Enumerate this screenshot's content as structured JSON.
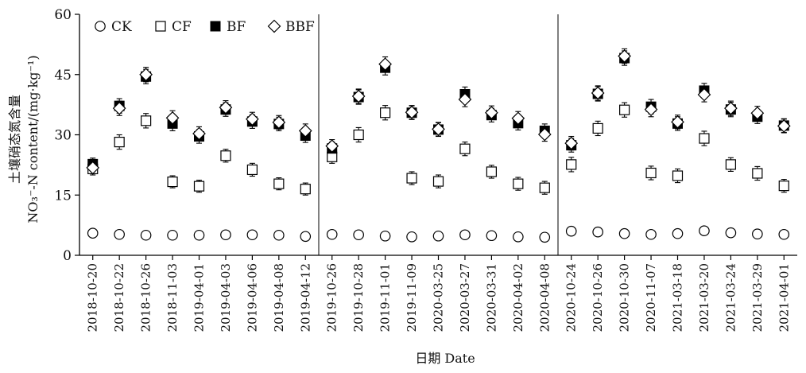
{
  "chart_data": {
    "type": "scatter",
    "ylabel_cn": "土壤硝态氮含量",
    "ylabel_en": "NO₃⁻-N content/(mg·kg⁻¹)",
    "xlabel": "日期 Date",
    "ylim": [
      0,
      60
    ],
    "yticks": [
      "0",
      "15",
      "30",
      "45",
      "60"
    ],
    "ytick_values": [
      0,
      15,
      30,
      45,
      60
    ],
    "categories": [
      "2018-10-20",
      "2018-10-22",
      "2018-10-26",
      "2018-11-03",
      "2019-04-01",
      "2019-04-03",
      "2019-04-06",
      "2019-04-08",
      "2019-04-12",
      "2019-10-26",
      "2019-10-28",
      "2019-11-01",
      "2019-11-09",
      "2020-03-25",
      "2020-03-27",
      "2020-03-31",
      "2020-04-02",
      "2020-04-08",
      "2020-10-24",
      "2020-10-26",
      "2020-10-30",
      "2020-11-07",
      "2021-03-18",
      "2021-03-20",
      "2021-03-24",
      "2021-03-29",
      "2021-04-01"
    ],
    "period_separators_after": [
      8,
      17
    ],
    "legend_position": "top-left",
    "series": [
      {
        "name": "CK",
        "marker": "circle-open",
        "values": [
          5.5,
          5.2,
          5.0,
          5.0,
          5.0,
          5.1,
          5.1,
          5.0,
          4.7,
          5.2,
          5.1,
          4.8,
          4.6,
          4.8,
          5.1,
          4.9,
          4.6,
          4.5,
          6.0,
          5.8,
          5.4,
          5.2,
          5.4,
          6.1,
          5.6,
          5.3,
          5.2
        ],
        "errors": [
          0,
          0,
          0,
          0,
          0,
          0,
          0,
          0,
          0,
          0,
          0,
          0,
          0,
          0,
          0,
          0,
          0,
          0,
          0,
          0,
          0,
          0,
          0,
          0,
          0,
          0,
          0
        ]
      },
      {
        "name": "CF",
        "marker": "square-open",
        "values": [
          21.5,
          28.2,
          33.5,
          18.3,
          17.2,
          24.8,
          21.3,
          17.8,
          16.5,
          24.5,
          30.0,
          35.5,
          19.2,
          18.4,
          26.5,
          20.8,
          17.8,
          16.8,
          22.6,
          31.6,
          36.2,
          20.5,
          19.8,
          29.1,
          22.6,
          20.4,
          17.3
        ],
        "errors": [
          1.5,
          1.8,
          1.8,
          1.5,
          1.5,
          1.6,
          1.6,
          1.5,
          1.5,
          1.6,
          1.8,
          1.8,
          1.6,
          1.6,
          1.7,
          1.6,
          1.6,
          1.6,
          1.8,
          1.8,
          1.8,
          1.7,
          1.7,
          1.8,
          1.7,
          1.7,
          1.6
        ]
      },
      {
        "name": "BF",
        "marker": "square-filled",
        "values": [
          22.7,
          37.2,
          44.5,
          32.8,
          29.6,
          36.3,
          33.3,
          32.7,
          29.8,
          26.6,
          39.4,
          46.7,
          35.5,
          31.3,
          40.1,
          34.9,
          32.9,
          31.0,
          27.4,
          40.2,
          49.1,
          37.0,
          32.8,
          41.0,
          36.3,
          34.5,
          32.3
        ],
        "errors": [
          1.5,
          1.8,
          1.8,
          1.8,
          1.7,
          1.7,
          1.7,
          1.7,
          1.7,
          1.6,
          1.8,
          1.8,
          1.7,
          1.7,
          1.8,
          1.7,
          1.7,
          1.7,
          1.7,
          1.8,
          1.8,
          1.8,
          1.7,
          1.8,
          1.8,
          1.7,
          1.7
        ]
      },
      {
        "name": "BBF",
        "marker": "diamond-open",
        "values": [
          21.8,
          36.6,
          45.0,
          34.2,
          30.3,
          36.8,
          33.9,
          33.1,
          31.0,
          27.2,
          39.6,
          47.6,
          35.6,
          31.4,
          38.8,
          35.5,
          34.1,
          30.1,
          27.9,
          40.4,
          49.6,
          36.3,
          33.2,
          40.0,
          36.6,
          35.4,
          32.2
        ],
        "errors": [
          1.5,
          1.8,
          1.8,
          1.8,
          1.7,
          1.7,
          1.7,
          1.7,
          1.7,
          1.6,
          1.8,
          1.8,
          1.7,
          1.7,
          1.8,
          1.7,
          1.7,
          1.7,
          1.7,
          1.8,
          1.8,
          1.8,
          1.7,
          1.8,
          1.8,
          1.7,
          1.7
        ]
      }
    ]
  }
}
